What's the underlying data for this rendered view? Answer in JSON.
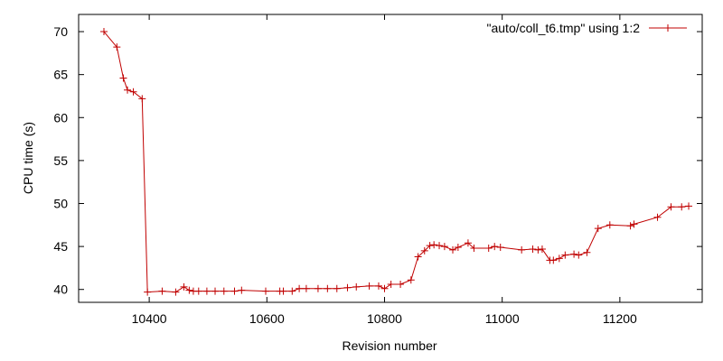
{
  "chart_data": {
    "type": "line",
    "xlabel": "Revision number",
    "ylabel": "CPU time (s)",
    "xlim": [
      10280,
      11340
    ],
    "ylim": [
      38.5,
      72.0
    ],
    "xticks": [
      10400,
      10600,
      10800,
      11000,
      11200
    ],
    "yticks": [
      40,
      45,
      50,
      55,
      60,
      65,
      70
    ],
    "grid": false,
    "legend_position": "top-right",
    "series": [
      {
        "name": "\"auto/coll_t6.tmp\" using 1:2",
        "color": "#c00000",
        "marker": "plus",
        "x": [
          10323,
          10345,
          10356,
          10363,
          10373,
          10388,
          10397,
          10422,
          10445,
          10459,
          10468,
          10475,
          10484,
          10498,
          10512,
          10527,
          10545,
          10557,
          10598,
          10622,
          10628,
          10643,
          10655,
          10667,
          10687,
          10703,
          10719,
          10737,
          10752,
          10774,
          10790,
          10800,
          10811,
          10827,
          10845,
          10857,
          10868,
          10877,
          10884,
          10893,
          10902,
          10916,
          10925,
          10942,
          10952,
          10977,
          10987,
          10997,
          11033,
          11052,
          11061,
          11068,
          11081,
          11087,
          11097,
          11107,
          11122,
          11130,
          11144,
          11163,
          11183,
          11218,
          11224,
          11264,
          11287,
          11305,
          11317
        ],
        "y": [
          70.0,
          68.2,
          64.6,
          63.2,
          63.0,
          62.2,
          39.7,
          39.8,
          39.7,
          40.3,
          39.9,
          39.8,
          39.8,
          39.8,
          39.8,
          39.8,
          39.8,
          39.9,
          39.8,
          39.8,
          39.8,
          39.8,
          40.1,
          40.1,
          40.1,
          40.1,
          40.1,
          40.2,
          40.3,
          40.4,
          40.4,
          40.1,
          40.6,
          40.6,
          41.1,
          43.8,
          44.5,
          45.1,
          45.2,
          45.1,
          45.0,
          44.6,
          44.9,
          45.4,
          44.8,
          44.8,
          45.0,
          44.9,
          44.6,
          44.7,
          44.6,
          44.7,
          43.4,
          43.4,
          43.6,
          44.0,
          44.1,
          44.0,
          44.3,
          47.1,
          47.5,
          47.4,
          47.6,
          48.4,
          49.6,
          49.6,
          49.7
        ]
      }
    ]
  }
}
